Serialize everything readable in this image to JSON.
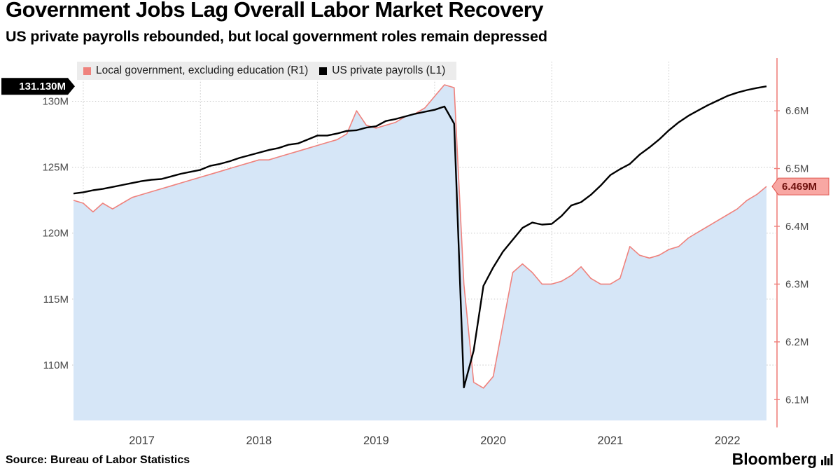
{
  "header": {
    "title": "Government Jobs Lag Overall Labor Market Recovery",
    "subtitle": "US private payrolls rebounded, but local government roles remain depressed"
  },
  "footer": {
    "brand": "Bloomberg"
  },
  "chart_data": {
    "type": "line",
    "title": "Government Jobs Lag Overall Labor Market Recovery",
    "subtitle": "US private payrolls rebounded, but local government roles remain depressed",
    "source": "Source: Bureau of Labor Statistics",
    "x_start": "2016-12",
    "x_freq": "monthly",
    "x_tick_labels": [
      "2017",
      "2018",
      "2019",
      "2020",
      "2021",
      "2022"
    ],
    "grid": true,
    "legend_position": "top-left",
    "left_axis": {
      "series": "US private payrolls",
      "min": 105.8,
      "max": 133.0,
      "ticks": [
        110,
        115,
        120,
        125,
        130
      ],
      "tick_suffix": "M",
      "last_value": 131.13,
      "last_label": "131.130M"
    },
    "right_axis": {
      "series": "Local government, excluding education",
      "min": 6.064,
      "max": 6.685,
      "ticks": [
        6.1,
        6.2,
        6.3,
        6.4,
        6.5,
        6.6
      ],
      "tick_suffix": "M",
      "last_value": 6.469,
      "last_label": "6.469M"
    },
    "series": [
      {
        "name": "Local government, excluding education (R1)",
        "axis": "right",
        "color": "#ef827d",
        "fill": "#d6e6f7",
        "badge_fill": "#f8a7a3",
        "badge_stroke": "#e0554f",
        "values": [
          6.445,
          6.44,
          6.425,
          6.44,
          6.43,
          6.44,
          6.45,
          6.455,
          6.46,
          6.465,
          6.47,
          6.475,
          6.48,
          6.485,
          6.49,
          6.495,
          6.5,
          6.505,
          6.51,
          6.515,
          6.515,
          6.52,
          6.525,
          6.53,
          6.535,
          6.54,
          6.545,
          6.55,
          6.56,
          6.6,
          6.575,
          6.57,
          6.575,
          6.58,
          6.59,
          6.595,
          6.605,
          6.625,
          6.645,
          6.64,
          6.3,
          6.13,
          6.12,
          6.14,
          6.23,
          6.32,
          6.335,
          6.32,
          6.3,
          6.3,
          6.305,
          6.315,
          6.33,
          6.31,
          6.3,
          6.3,
          6.31,
          6.365,
          6.35,
          6.345,
          6.35,
          6.36,
          6.365,
          6.38,
          6.39,
          6.4,
          6.41,
          6.42,
          6.43,
          6.445,
          6.455,
          6.469
        ]
      },
      {
        "name": "US private payrolls (L1)",
        "axis": "left",
        "color": "#000000",
        "values": [
          123.0,
          123.1,
          123.25,
          123.35,
          123.5,
          123.65,
          123.8,
          123.95,
          124.05,
          124.1,
          124.3,
          124.5,
          124.65,
          124.8,
          125.1,
          125.25,
          125.45,
          125.7,
          125.9,
          126.1,
          126.3,
          126.45,
          126.7,
          126.8,
          127.1,
          127.4,
          127.4,
          127.55,
          127.75,
          127.8,
          128.0,
          128.1,
          128.5,
          128.65,
          128.85,
          129.05,
          129.2,
          129.35,
          129.6,
          128.3,
          108.3,
          111.1,
          116.0,
          117.4,
          118.6,
          119.5,
          120.4,
          120.8,
          120.65,
          120.7,
          121.3,
          122.1,
          122.35,
          122.9,
          123.6,
          124.4,
          124.85,
          125.25,
          125.95,
          126.5,
          127.1,
          127.8,
          128.4,
          128.9,
          129.3,
          129.7,
          130.05,
          130.4,
          130.65,
          130.85,
          131.0,
          131.13
        ]
      }
    ]
  }
}
